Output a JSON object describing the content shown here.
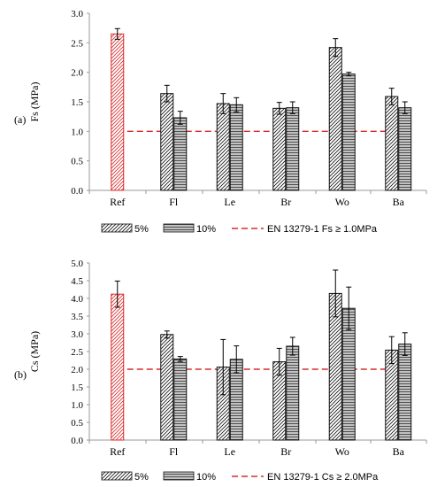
{
  "chart_data": [
    {
      "panel_label": "(a)",
      "type": "bar",
      "ylabel": "Fs (MPa)",
      "ylim": [
        0,
        3.0
      ],
      "yticks": [
        "0.0",
        "0.5",
        "1.0",
        "1.5",
        "2.0",
        "2.5",
        "3.0"
      ],
      "categories": [
        "Ref",
        "Fl",
        "Le",
        "Br",
        "Wo",
        "Ba"
      ],
      "reference": {
        "value": 2.65,
        "err": 0.09
      },
      "series": [
        {
          "name": "5%",
          "values": [
            null,
            1.64,
            1.47,
            1.39,
            2.42,
            1.59
          ],
          "errors": [
            null,
            0.14,
            0.17,
            0.1,
            0.15,
            0.14
          ]
        },
        {
          "name": "10%",
          "values": [
            null,
            1.23,
            1.45,
            1.4,
            1.97,
            1.4
          ],
          "errors": [
            null,
            0.11,
            0.12,
            0.1,
            0.03,
            0.1
          ]
        }
      ],
      "threshold": {
        "value": 1.0,
        "name": "EN 13279-1  Fs ≥ 1.0MPa"
      },
      "legend_position": "bottom",
      "grid": false
    },
    {
      "panel_label": "(b)",
      "type": "bar",
      "ylabel": "Cs (MPa)",
      "ylim": [
        0,
        5.0
      ],
      "yticks": [
        "0.0",
        "0.5",
        "1.0",
        "1.5",
        "2.0",
        "2.5",
        "3.0",
        "3.5",
        "4.0",
        "4.5",
        "5.0"
      ],
      "categories": [
        "Ref",
        "Fl",
        "Le",
        "Br",
        "Wo",
        "Ba"
      ],
      "reference": {
        "value": 4.12,
        "err": 0.37
      },
      "series": [
        {
          "name": "5%",
          "values": [
            null,
            2.98,
            2.06,
            2.21,
            4.14,
            2.54
          ],
          "errors": [
            null,
            0.1,
            0.78,
            0.38,
            0.66,
            0.38
          ]
        },
        {
          "name": "10%",
          "values": [
            null,
            2.29,
            2.28,
            2.65,
            3.72,
            2.71
          ],
          "errors": [
            null,
            0.07,
            0.38,
            0.25,
            0.6,
            0.32
          ]
        }
      ],
      "threshold": {
        "value": 2.0,
        "name": "EN 13279-1  Cs ≥ 2.0MPa"
      },
      "legend_position": "bottom",
      "grid": false
    }
  ],
  "colors": {
    "reference": "#d92b2b",
    "threshold": "#d92b2b",
    "bar_stroke": "#111111",
    "bar10_fill": "#bdbdbd",
    "axis": "#9a9a9a"
  }
}
